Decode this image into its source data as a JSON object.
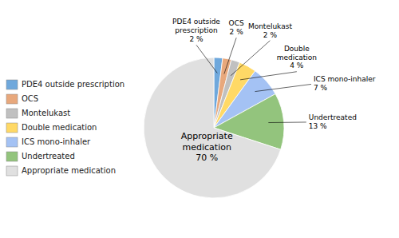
{
  "chart_data": {
    "type": "pie",
    "categories": [
      "PDE4 outside prescription",
      "OCS",
      "Montelukast",
      "Double medication",
      "ICS mono-inhaler",
      "Undertreated",
      "Appropriate medication"
    ],
    "values": [
      2,
      2,
      2,
      4,
      7,
      13,
      70
    ],
    "colors": [
      "#6fa8dc",
      "#e8a87c",
      "#c0c0c0",
      "#ffd966",
      "#a4c2f4",
      "#93c47d",
      "#e0e0e0"
    ],
    "data_labels": true,
    "value_labels": [
      "PDE4 outside\nprescription\n2 %",
      "OCS\n2 %",
      "Montelukast\n2 %",
      "Double\nmedication\n4 %",
      "ICS mono-inhaler\n7 %",
      "Undertreated\n13 %",
      "Appropriate\nmedication\n70 %"
    ],
    "legend": "left"
  }
}
